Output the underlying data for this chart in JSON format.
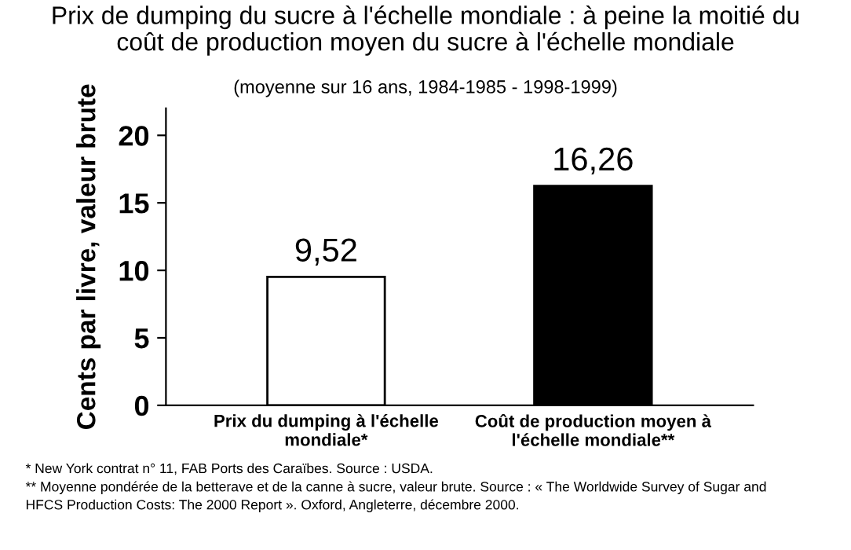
{
  "chart_data": {
    "type": "bar",
    "title": "Prix de dumping du sucre à l'échelle mondiale : à peine la moitié du\ncoût de production moyen du sucre à l'échelle mondiale",
    "subtitle": "(moyenne sur 16 ans, 1984-1985 - 1998-1999)",
    "ylabel": "Cents par livre, valeur brute",
    "categories": [
      "Prix du dumping à l'échelle\nmondiale*",
      "Coût de production moyen à\nl'échelle mondiale**"
    ],
    "values": [
      9.52,
      16.26
    ],
    "colors": [
      "#ffffff",
      "#000000"
    ],
    "value_labels": [
      "9,52",
      "16,26"
    ],
    "ylim": [
      0,
      22
    ],
    "yticks": [
      0,
      5,
      10,
      15,
      20
    ],
    "grid": false,
    "legend": false,
    "annotations": [
      "* New York contrat n° 11, FAB Ports des Caraïbes. Source : USDA.",
      "** Moyenne pondérée de la betterave et de la canne à sucre, valeur brute. Source : « The Worldwide Survey of Sugar and\nHFCS Production Costs: The 2000 Report ». Oxford, Angleterre, décembre 2000."
    ]
  }
}
